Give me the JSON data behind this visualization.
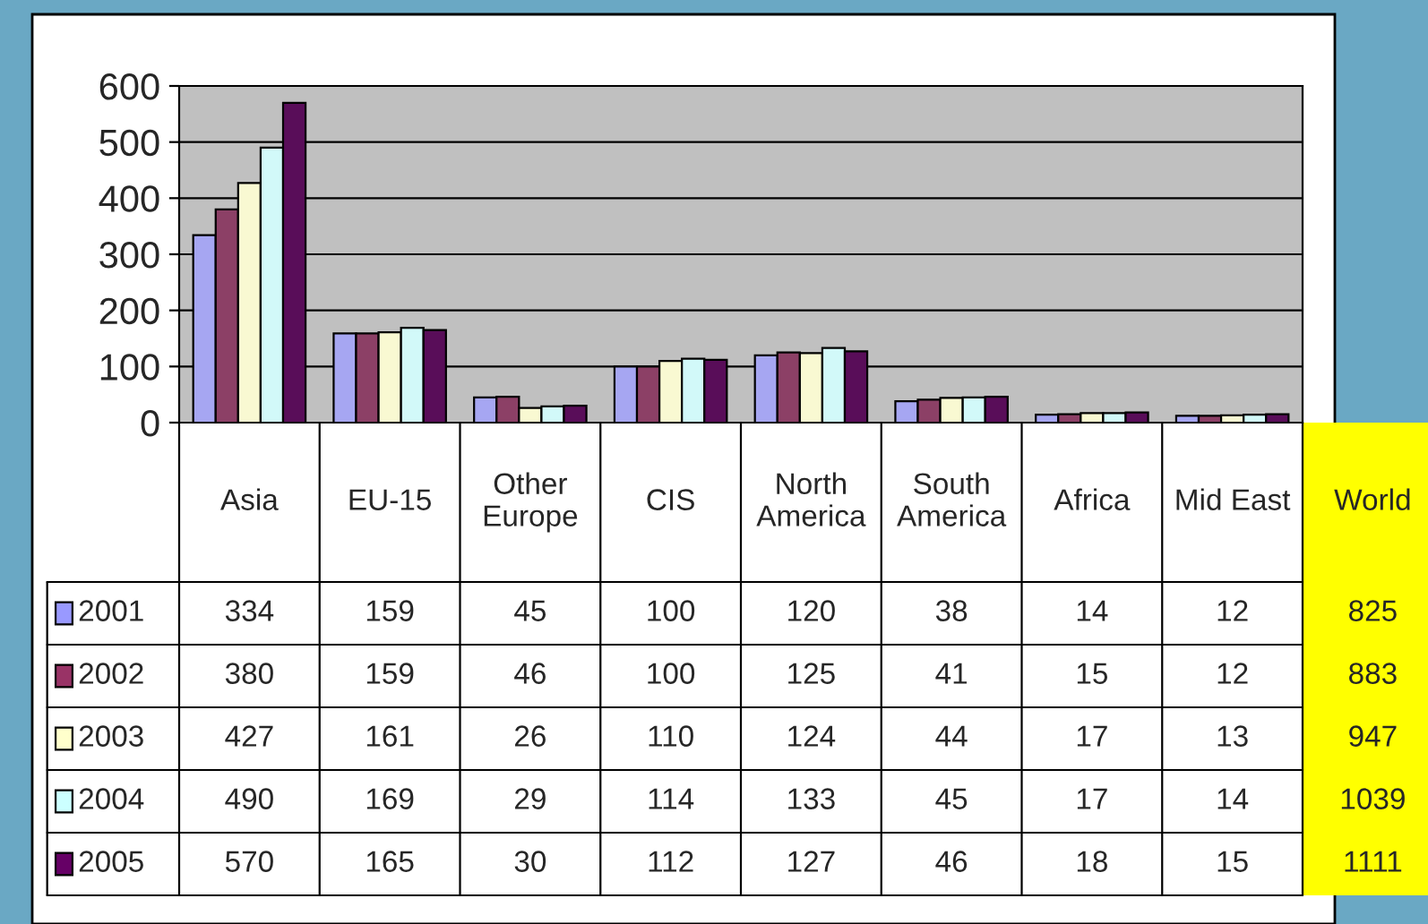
{
  "chart_data": {
    "type": "bar",
    "categories": [
      "Asia",
      "EU-15",
      "Other\nEurope",
      "CIS",
      "North\nAmerica",
      "South\nAmerica",
      "Africa",
      "Mid East"
    ],
    "series": [
      {
        "name": "2001",
        "color": "#9999ff",
        "values": [
          334,
          159,
          45,
          100,
          120,
          38,
          14,
          12
        ]
      },
      {
        "name": "2002",
        "color": "#993366",
        "values": [
          380,
          159,
          46,
          100,
          125,
          41,
          15,
          12
        ]
      },
      {
        "name": "2003",
        "color": "#ffffcc",
        "values": [
          427,
          161,
          26,
          110,
          124,
          44,
          17,
          13
        ]
      },
      {
        "name": "2004",
        "color": "#ccffff",
        "values": [
          490,
          169,
          29,
          114,
          133,
          45,
          17,
          14
        ]
      },
      {
        "name": "2005",
        "color": "#660066",
        "values": [
          570,
          165,
          30,
          112,
          127,
          46,
          18,
          15
        ]
      }
    ],
    "ylim": [
      0,
      600
    ],
    "yticks": [
      0,
      100,
      200,
      300,
      400,
      500,
      600
    ],
    "grid": "y",
    "legend": "bottom",
    "data_labels": true,
    "annotations": [
      "World",
      "825",
      "883",
      "947",
      "1039",
      "1111"
    ]
  }
}
